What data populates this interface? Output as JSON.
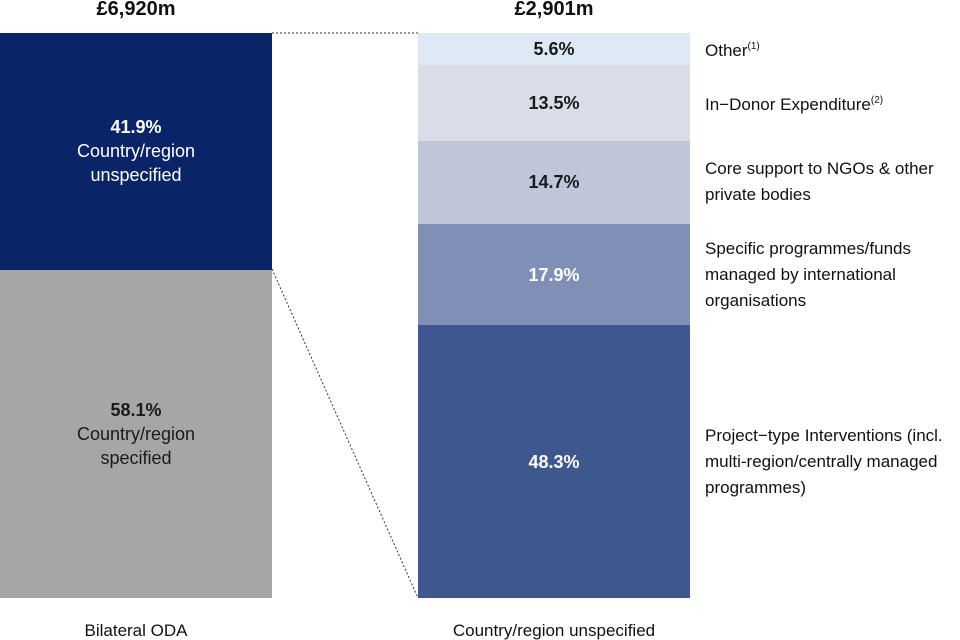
{
  "chart_data": {
    "type": "stacked",
    "bars": [
      {
        "total": "£6,920m",
        "label": "Bilateral ODA",
        "names_inside": true,
        "segments": [
          {
            "name": "Country/region specified",
            "value": 58.1,
            "value_label": "58.1%",
            "color": "#a6a6a6",
            "label_color": "#1a1a1a"
          },
          {
            "name": "Country/region unspecified",
            "value": 41.9,
            "value_label": "41.9%",
            "color": "#0a2468",
            "label_color": "#ffffff"
          }
        ]
      },
      {
        "total": "£2,901m",
        "label": "Country/region unspecified",
        "names_inside": false,
        "segments": [
          {
            "name": "Project−type Interventions (incl. multi-region/centrally managed programmes)",
            "value": 48.3,
            "value_label": "48.3%",
            "color": "#3f578f",
            "label_color": "#ffffff"
          },
          {
            "name": "Specific programmes/funds managed by international organisations",
            "value": 17.9,
            "value_label": "17.9%",
            "color": "#7f8fb6",
            "label_color": "#ffffff"
          },
          {
            "name": "Core support to NGOs & other private bodies",
            "value": 14.7,
            "value_label": "14.7%",
            "color": "#bfc6da",
            "label_color": "#1a1a1a"
          },
          {
            "name": "In−Donor Expenditure",
            "note": "(2)",
            "value": 13.5,
            "value_label": "13.5%",
            "color": "#d8dde8",
            "label_color": "#1a1a1a"
          },
          {
            "name": "Other",
            "note": "(1)",
            "value": 5.6,
            "value_label": "5.6%",
            "color": "#dde9f5",
            "label_color": "#1a1a1a"
          }
        ]
      }
    ]
  }
}
